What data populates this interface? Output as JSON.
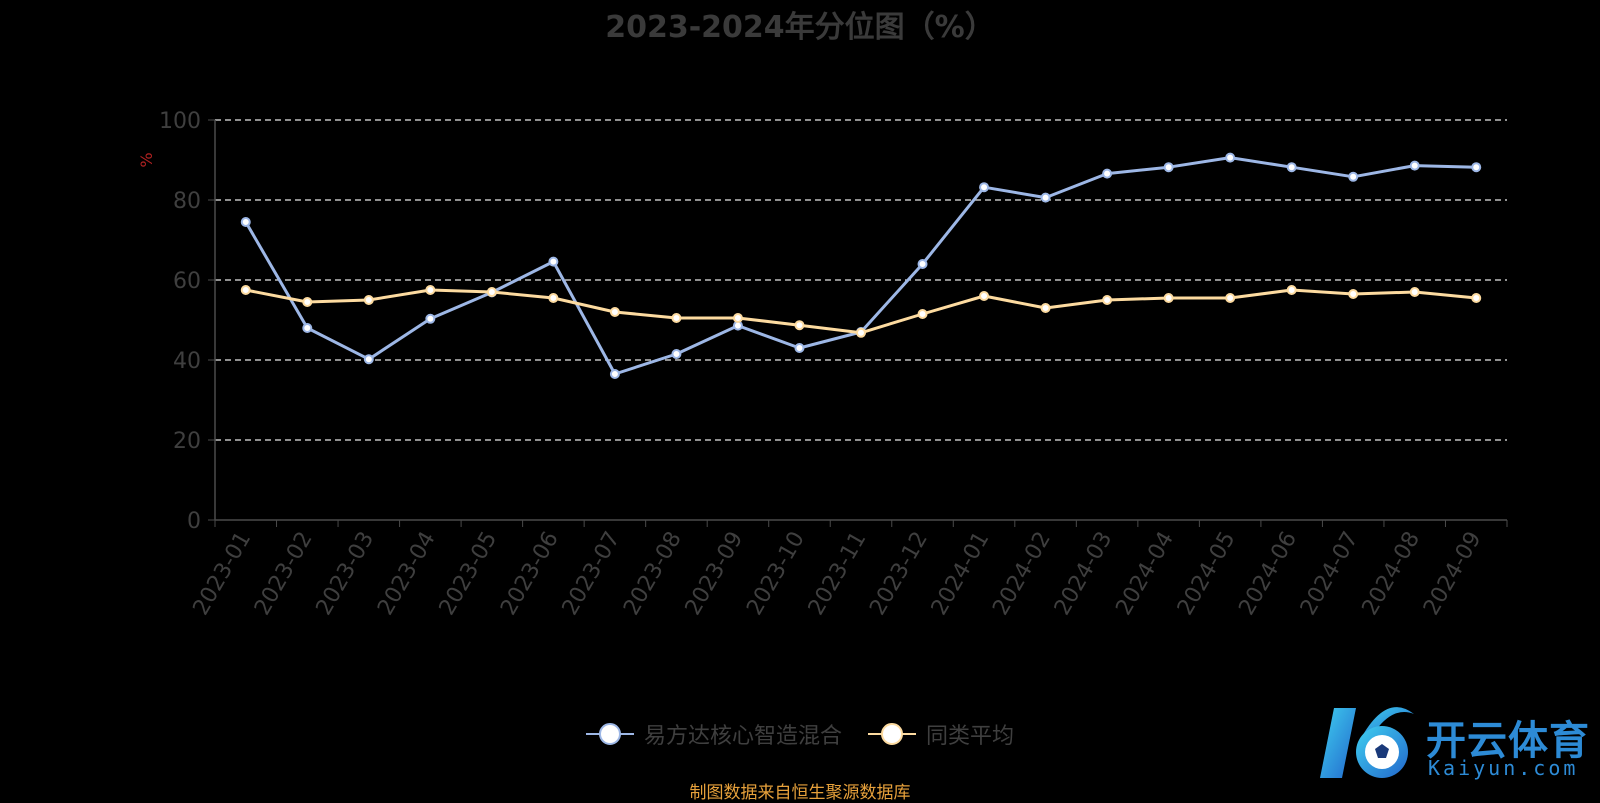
{
  "title": "2023-2024年分位图（%）",
  "source_note": "制图数据来自恒生聚源数据库",
  "logo": {
    "name": "开云体育",
    "sub": "Kaiyun.com"
  },
  "colors": {
    "series1": "#9db7e6",
    "series2": "#fddba0",
    "axis_unit": "#b22222",
    "axis": "#4a4a4a"
  },
  "chart_data": {
    "type": "line",
    "ylabel": "%",
    "ylim": [
      0,
      100
    ],
    "yticks": [
      0,
      20,
      40,
      60,
      80,
      100
    ],
    "grid": true,
    "legend_position": "bottom-center",
    "categories": [
      "2023-01",
      "2023-02",
      "2023-03",
      "2023-04",
      "2023-05",
      "2023-06",
      "2023-07",
      "2023-08",
      "2023-09",
      "2023-10",
      "2023-11",
      "2023-12",
      "2024-01",
      "2024-02",
      "2024-03",
      "2024-04",
      "2024-05",
      "2024-06",
      "2024-07",
      "2024-08",
      "2024-09"
    ],
    "series": [
      {
        "name": "易方达核心智造混合",
        "color": "#9db7e6",
        "values": [
          74.5,
          48.0,
          40.2,
          50.3,
          56.9,
          64.6,
          36.5,
          41.5,
          48.6,
          43.0,
          47.0,
          64.0,
          83.2,
          80.6,
          86.6,
          88.2,
          90.6,
          88.2,
          85.8,
          88.6,
          88.2
        ]
      },
      {
        "name": "同类平均",
        "color": "#fddba0",
        "values": [
          57.5,
          54.5,
          55.0,
          57.5,
          57.0,
          55.5,
          52.0,
          50.5,
          50.5,
          48.7,
          46.8,
          51.5,
          56.0,
          53.0,
          55.0,
          55.5,
          55.5,
          57.5,
          56.5,
          57.0,
          55.5
        ]
      }
    ]
  }
}
